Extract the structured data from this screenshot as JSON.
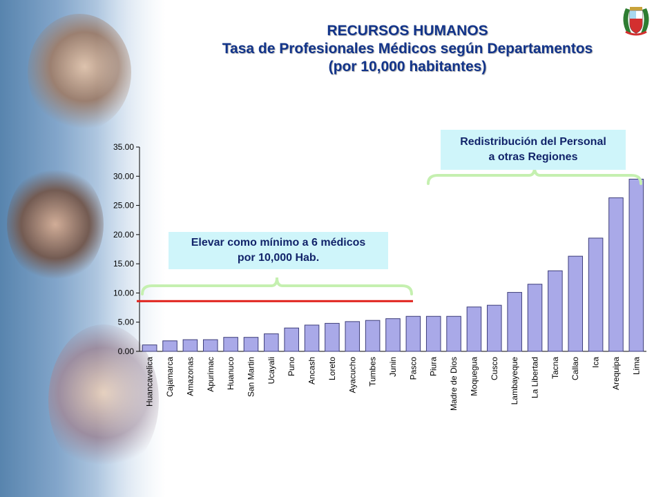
{
  "title": {
    "line1": "RECURSOS HUMANOS",
    "line2": "Tasa de Profesionales Médicos según Departamentos",
    "line3": "(por 10,000 habitantes)"
  },
  "callouts": {
    "minimum": {
      "line1": "Elevar como mínimo a 6 médicos",
      "line2": "por 10,000 Hab."
    },
    "redistribution": {
      "line1": "Redistribución del Personal",
      "line2": "a otras Regiones"
    }
  },
  "colors": {
    "title": "#12348a",
    "bar_fill": "#a9a9e8",
    "bar_stroke": "#3d3d7a",
    "threshold_line": "#e0201a",
    "brace": "#c5f0b0",
    "callout_bg": "#cff5fa"
  },
  "icons": {
    "seal": "peru-coat-of-arms-icon"
  },
  "chart_data": {
    "type": "bar",
    "categories": [
      "Huancavelica",
      "Cajamarca",
      "Amazonas",
      "Apurimac",
      "Huanuco",
      "San Martin",
      "Ucayali",
      "Puno",
      "Ancash",
      "Loreto",
      "Ayacucho",
      "Tumbes",
      "Junin",
      "Pasco",
      "Piura",
      "Madre de Dios",
      "Moquegua",
      "Cusco",
      "Lambayeque",
      "La Libertad",
      "Tacna",
      "Callao",
      "Ica",
      "Arequipa",
      "Lima"
    ],
    "values": [
      1.1,
      1.8,
      2.0,
      2.0,
      2.4,
      2.4,
      3.0,
      4.0,
      4.5,
      4.8,
      5.1,
      5.3,
      5.6,
      6.0,
      6.0,
      6.0,
      7.6,
      7.9,
      10.1,
      11.5,
      13.8,
      16.3,
      19.4,
      26.3,
      29.5
    ],
    "ylim": [
      0,
      35
    ],
    "yticks": [
      "0.00",
      "5.00",
      "10.00",
      "15.00",
      "20.00",
      "25.00",
      "30.00",
      "35.00"
    ],
    "title": "",
    "xlabel": "",
    "ylabel": "",
    "grid": false,
    "threshold": 8.6
  }
}
